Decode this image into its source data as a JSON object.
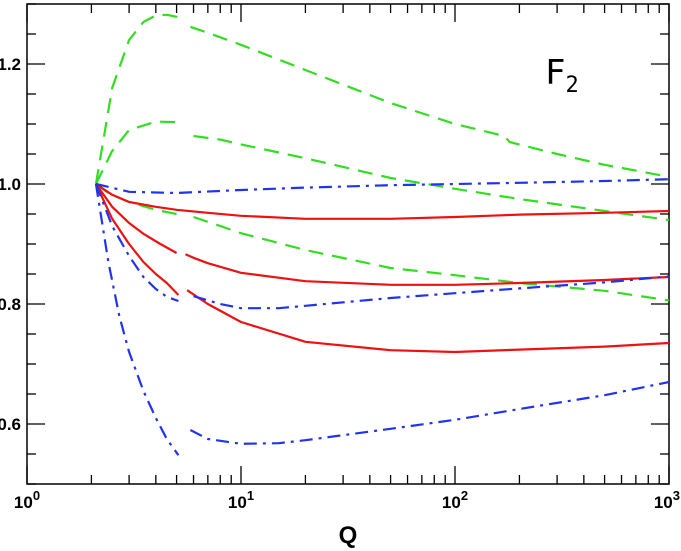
{
  "chart_data": {
    "type": "line",
    "title": "",
    "xlabel": "Q",
    "ylabel": "",
    "xscale": "log",
    "xlim": [
      1,
      1000
    ],
    "ylim": [
      0.5,
      1.3
    ],
    "grid": false,
    "legend": "none",
    "annotation": {
      "main": "F",
      "sub": "2",
      "placement": "top-right"
    },
    "x_ticks": [
      {
        "value": 1,
        "base": "10",
        "exp": "0"
      },
      {
        "value": 10,
        "base": "10",
        "exp": "1"
      },
      {
        "value": 100,
        "base": "10",
        "exp": "2"
      },
      {
        "value": 1000,
        "base": "10",
        "exp": "3"
      }
    ],
    "y_ticks": [
      {
        "value": 0.6,
        "label": "0.6"
      },
      {
        "value": 0.8,
        "label": "0.8"
      },
      {
        "value": 1.0,
        "label": "1.0"
      },
      {
        "value": 1.2,
        "label": "1.2"
      }
    ],
    "series": [
      {
        "color": "#33dd22",
        "dash": "long-dash",
        "segments": [
          [
            [
              2.1,
              1.0
            ],
            [
              2.5,
              1.16
            ],
            [
              3,
              1.24
            ],
            [
              3.5,
              1.27
            ],
            [
              4,
              1.281
            ],
            [
              4.5,
              1.282
            ],
            [
              5.1,
              1.278
            ]
          ],
          [
            [
              5.8,
              1.262
            ],
            [
              7,
              1.252
            ],
            [
              10,
              1.232
            ],
            [
              20,
              1.19
            ],
            [
              50,
              1.135
            ],
            [
              100,
              1.1
            ],
            [
              170,
              1.08
            ],
            [
              180,
              1.07
            ],
            [
              300,
              1.05
            ],
            [
              500,
              1.032
            ],
            [
              1000,
              1.012
            ]
          ]
        ]
      },
      {
        "color": "#33dd22",
        "dash": "long-dash",
        "segments": [
          [
            [
              2.1,
              1.0
            ],
            [
              2.5,
              1.055
            ],
            [
              3,
              1.09
            ],
            [
              4,
              1.104
            ],
            [
              5.1,
              1.103
            ]
          ],
          [
            [
              6,
              1.08
            ],
            [
              8,
              1.074
            ],
            [
              10,
              1.066
            ],
            [
              20,
              1.043
            ],
            [
              50,
              1.01
            ],
            [
              100,
              0.992
            ],
            [
              200,
              0.975
            ],
            [
              500,
              0.955
            ],
            [
              1000,
              0.94
            ]
          ]
        ]
      },
      {
        "color": "#33dd22",
        "dash": "long-dash",
        "segments": [
          [
            [
              2.1,
              1.0
            ],
            [
              2.4,
              0.985
            ],
            [
              3,
              0.97
            ],
            [
              4,
              0.957
            ],
            [
              5,
              0.95
            ]
          ],
          [
            [
              6,
              0.945
            ],
            [
              8,
              0.93
            ],
            [
              10,
              0.918
            ],
            [
              20,
              0.89
            ],
            [
              50,
              0.86
            ],
            [
              100,
              0.848
            ],
            [
              200,
              0.835
            ],
            [
              500,
              0.822
            ],
            [
              1000,
              0.806
            ]
          ]
        ]
      },
      {
        "color": "#ee1111",
        "dash": "solid",
        "segments": [
          [
            [
              2.1,
              1.0
            ],
            [
              2.5,
              0.982
            ],
            [
              3,
              0.97
            ],
            [
              4,
              0.962
            ],
            [
              5,
              0.957
            ],
            [
              7,
              0.952
            ],
            [
              10,
              0.947
            ],
            [
              20,
              0.942
            ],
            [
              50,
              0.942
            ],
            [
              100,
              0.945
            ],
            [
              170,
              0.948
            ],
            [
              200,
              0.949
            ],
            [
              500,
              0.952
            ],
            [
              1000,
              0.955
            ]
          ]
        ]
      },
      {
        "color": "#ee1111",
        "dash": "solid",
        "segments": [
          [
            [
              2.1,
              1.0
            ],
            [
              2.5,
              0.962
            ],
            [
              3,
              0.935
            ],
            [
              3.5,
              0.917
            ],
            [
              4.2,
              0.9
            ],
            [
              5,
              0.885
            ]
          ],
          [
            [
              5.5,
              0.883
            ],
            [
              6,
              0.877
            ],
            [
              7,
              0.868
            ],
            [
              10,
              0.852
            ],
            [
              20,
              0.838
            ],
            [
              50,
              0.832
            ],
            [
              100,
              0.832
            ],
            [
              200,
              0.835
            ],
            [
              500,
              0.84
            ],
            [
              1000,
              0.845
            ]
          ]
        ]
      },
      {
        "color": "#ee1111",
        "dash": "solid",
        "segments": [
          [
            [
              2.1,
              1.0
            ],
            [
              2.5,
              0.942
            ],
            [
              3,
              0.9
            ],
            [
              3.5,
              0.87
            ],
            [
              4,
              0.85
            ],
            [
              4.5,
              0.835
            ],
            [
              5.1,
              0.815
            ]
          ],
          [
            [
              5.6,
              0.823
            ],
            [
              7,
              0.8
            ],
            [
              10,
              0.77
            ],
            [
              20,
              0.737
            ],
            [
              50,
              0.723
            ],
            [
              100,
              0.72
            ],
            [
              200,
              0.724
            ],
            [
              500,
              0.729
            ],
            [
              1000,
              0.735
            ]
          ]
        ]
      },
      {
        "color": "#2233ee",
        "dash": "dash-dot",
        "segments": [
          [
            [
              2.1,
              1.0
            ],
            [
              3,
              0.987
            ],
            [
              5,
              0.985
            ],
            [
              10,
              0.99
            ],
            [
              20,
              0.994
            ],
            [
              50,
              0.998
            ],
            [
              100,
              1.0
            ],
            [
              200,
              1.002
            ],
            [
              500,
              1.005
            ],
            [
              1000,
              1.008
            ]
          ]
        ]
      },
      {
        "color": "#2233ee",
        "dash": "dash-dot",
        "segments": [
          [
            [
              2.1,
              1.0
            ],
            [
              2.5,
              0.93
            ],
            [
              3,
              0.88
            ],
            [
              3.5,
              0.845
            ],
            [
              4,
              0.825
            ],
            [
              4.5,
              0.812
            ],
            [
              5.1,
              0.805
            ]
          ],
          [
            [
              6,
              0.813
            ],
            [
              8,
              0.8
            ],
            [
              10,
              0.793
            ],
            [
              15,
              0.793
            ],
            [
              20,
              0.797
            ],
            [
              50,
              0.81
            ],
            [
              100,
              0.818
            ],
            [
              200,
              0.826
            ],
            [
              500,
              0.836
            ],
            [
              1000,
              0.846
            ]
          ]
        ]
      },
      {
        "color": "#2233ee",
        "dash": "dash-dot",
        "segments": [
          [
            [
              2.1,
              1.0
            ],
            [
              2.4,
              0.87
            ],
            [
              2.7,
              0.78
            ],
            [
              3,
              0.72
            ],
            [
              3.5,
              0.655
            ],
            [
              4,
              0.61
            ],
            [
              4.5,
              0.575
            ],
            [
              5.1,
              0.548
            ]
          ],
          [
            [
              5.8,
              0.59
            ],
            [
              7,
              0.575
            ],
            [
              10,
              0.567
            ],
            [
              15,
              0.568
            ],
            [
              20,
              0.573
            ],
            [
              50,
              0.592
            ],
            [
              100,
              0.607
            ],
            [
              200,
              0.625
            ],
            [
              500,
              0.648
            ],
            [
              1000,
              0.67
            ]
          ]
        ]
      }
    ]
  }
}
